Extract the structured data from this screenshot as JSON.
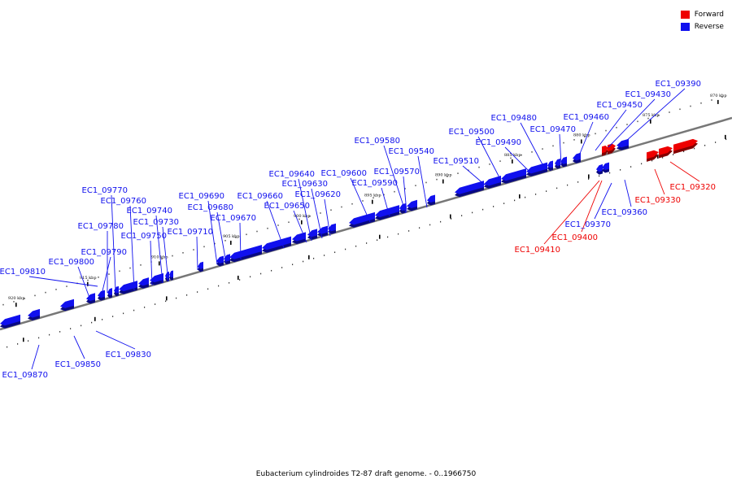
{
  "colors": {
    "forward": "#ee0000",
    "reverse": "#1010ee",
    "backbone": "#777777"
  },
  "legend": {
    "forward": "Forward",
    "reverse": "Reverse"
  },
  "caption": "Eubacterium cylindroides T2-87 draft genome. - 0..1966750",
  "tick_labels": [
    "870 kbp",
    "875 kbp",
    "880 kbp",
    "885 kbp",
    "890 kbp",
    "895 kbp",
    "900 kbp",
    "905 kbp",
    "910 kbp",
    "915 kbp",
    "920 kbp"
  ],
  "genes": [
    {
      "label": "EC1_09320",
      "strand": "forward"
    },
    {
      "label": "EC1_09330",
      "strand": "forward"
    },
    {
      "label": "EC1_09360",
      "strand": "reverse"
    },
    {
      "label": "EC1_09370",
      "strand": "reverse"
    },
    {
      "label": "EC1_09390",
      "strand": "reverse"
    },
    {
      "label": "EC1_09400",
      "strand": "forward"
    },
    {
      "label": "EC1_09410",
      "strand": "forward"
    },
    {
      "label": "EC1_09430",
      "strand": "reverse"
    },
    {
      "label": "EC1_09450",
      "strand": "reverse"
    },
    {
      "label": "EC1_09460",
      "strand": "reverse"
    },
    {
      "label": "EC1_09470",
      "strand": "reverse"
    },
    {
      "label": "EC1_09480",
      "strand": "reverse"
    },
    {
      "label": "EC1_09490",
      "strand": "reverse"
    },
    {
      "label": "EC1_09500",
      "strand": "reverse"
    },
    {
      "label": "EC1_09510",
      "strand": "reverse"
    },
    {
      "label": "EC1_09540",
      "strand": "reverse"
    },
    {
      "label": "EC1_09570",
      "strand": "reverse"
    },
    {
      "label": "EC1_09580",
      "strand": "reverse"
    },
    {
      "label": "EC1_09590",
      "strand": "reverse"
    },
    {
      "label": "EC1_09600",
      "strand": "reverse"
    },
    {
      "label": "EC1_09620",
      "strand": "reverse"
    },
    {
      "label": "EC1_09630",
      "strand": "reverse"
    },
    {
      "label": "EC1_09640",
      "strand": "reverse"
    },
    {
      "label": "EC1_09650",
      "strand": "reverse"
    },
    {
      "label": "EC1_09660",
      "strand": "reverse"
    },
    {
      "label": "EC1_09670",
      "strand": "reverse"
    },
    {
      "label": "EC1_09680",
      "strand": "reverse"
    },
    {
      "label": "EC1_09690",
      "strand": "reverse"
    },
    {
      "label": "EC1_09710",
      "strand": "reverse"
    },
    {
      "label": "EC1_09730",
      "strand": "reverse"
    },
    {
      "label": "EC1_09740",
      "strand": "reverse"
    },
    {
      "label": "EC1_09750",
      "strand": "reverse"
    },
    {
      "label": "EC1_09760",
      "strand": "reverse"
    },
    {
      "label": "EC1_09770",
      "strand": "reverse"
    },
    {
      "label": "EC1_09780",
      "strand": "reverse"
    },
    {
      "label": "EC1_09790",
      "strand": "reverse"
    },
    {
      "label": "EC1_09800",
      "strand": "reverse"
    },
    {
      "label": "EC1_09810",
      "strand": "reverse"
    },
    {
      "label": "EC1_09830",
      "strand": "reverse"
    },
    {
      "label": "EC1_09850",
      "strand": "reverse"
    },
    {
      "label": "EC1_09870",
      "strand": "reverse"
    }
  ]
}
